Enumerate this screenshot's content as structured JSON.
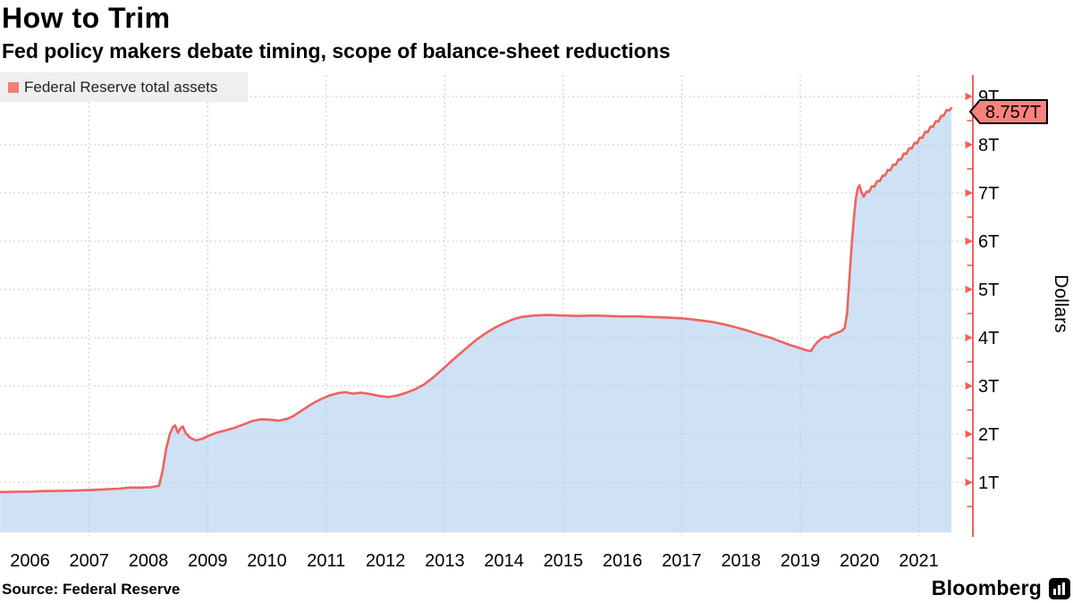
{
  "header": {
    "title": "How to Trim",
    "subtitle": "Fed policy makers debate timing, scope of balance-sheet reductions"
  },
  "legend": {
    "label": "Federal Reserve total assets",
    "swatch_color": "#f87c78"
  },
  "footer": {
    "source": "Source: Federal Reserve",
    "brand": "Bloomberg",
    "brand_icon": "bloomberg-terminal-icon"
  },
  "chart_data": {
    "type": "area",
    "title": "How to Trim",
    "y_axis_title": "Dollars",
    "last_value_label": "8.757T",
    "x_tick_labels": [
      "2006",
      "2007",
      "2008",
      "2009",
      "2010",
      "2011",
      "2012",
      "2013",
      "2014",
      "2015",
      "2016",
      "2017",
      "2018",
      "2019",
      "2020",
      "2021"
    ],
    "y_tick_labels": [
      {
        "label": "1T",
        "value": 1
      },
      {
        "label": "2T",
        "value": 2
      },
      {
        "label": "3T",
        "value": 3
      },
      {
        "label": "4T",
        "value": 4
      },
      {
        "label": "5T",
        "value": 5
      },
      {
        "label": "6T",
        "value": 6
      },
      {
        "label": "7T",
        "value": 7
      },
      {
        "label": "8T",
        "value": 8
      },
      {
        "label": "9T",
        "value": 9
      }
    ],
    "ylim": [
      0,
      9.4
    ],
    "xlim": [
      2006.0,
      2022.08
    ],
    "grid": {
      "vertical_years": [
        2008,
        2010,
        2012,
        2014,
        2016,
        2018,
        2020,
        2022
      ],
      "horizontal_values": [
        1,
        2,
        3,
        4,
        5,
        6,
        7,
        8,
        9
      ]
    },
    "colors": {
      "line": "#ef6260",
      "fill": "#cfe1f5",
      "axis": "#f2605a",
      "badge_fill": "#f9827d",
      "grid": "#c8c8c8",
      "legend_bg": "#efefef"
    },
    "series": [
      {
        "name": "Federal Reserve total assets",
        "units": "trillions of dollars",
        "points": [
          [
            2006.0,
            0.8
          ],
          [
            2006.25,
            0.805
          ],
          [
            2006.5,
            0.81
          ],
          [
            2006.75,
            0.82
          ],
          [
            2007.0,
            0.825
          ],
          [
            2007.25,
            0.83
          ],
          [
            2007.5,
            0.84
          ],
          [
            2007.75,
            0.855
          ],
          [
            2008.0,
            0.87
          ],
          [
            2008.2,
            0.895
          ],
          [
            2008.35,
            0.89
          ],
          [
            2008.55,
            0.9
          ],
          [
            2008.68,
            0.93
          ],
          [
            2008.74,
            1.25
          ],
          [
            2008.8,
            1.7
          ],
          [
            2008.86,
            2.0
          ],
          [
            2008.91,
            2.14
          ],
          [
            2008.95,
            2.18
          ],
          [
            2009.0,
            2.03
          ],
          [
            2009.04,
            2.12
          ],
          [
            2009.08,
            2.16
          ],
          [
            2009.13,
            2.02
          ],
          [
            2009.2,
            1.93
          ],
          [
            2009.3,
            1.87
          ],
          [
            2009.4,
            1.9
          ],
          [
            2009.5,
            1.96
          ],
          [
            2009.65,
            2.03
          ],
          [
            2009.8,
            2.08
          ],
          [
            2009.95,
            2.13
          ],
          [
            2010.1,
            2.2
          ],
          [
            2010.25,
            2.27
          ],
          [
            2010.4,
            2.31
          ],
          [
            2010.55,
            2.3
          ],
          [
            2010.7,
            2.28
          ],
          [
            2010.85,
            2.32
          ],
          [
            2010.95,
            2.38
          ],
          [
            2011.1,
            2.5
          ],
          [
            2011.25,
            2.62
          ],
          [
            2011.4,
            2.72
          ],
          [
            2011.55,
            2.8
          ],
          [
            2011.7,
            2.85
          ],
          [
            2011.82,
            2.87
          ],
          [
            2011.95,
            2.84
          ],
          [
            2012.1,
            2.86
          ],
          [
            2012.25,
            2.83
          ],
          [
            2012.4,
            2.79
          ],
          [
            2012.55,
            2.77
          ],
          [
            2012.7,
            2.8
          ],
          [
            2012.85,
            2.86
          ],
          [
            2013.0,
            2.93
          ],
          [
            2013.15,
            3.03
          ],
          [
            2013.3,
            3.17
          ],
          [
            2013.45,
            3.33
          ],
          [
            2013.6,
            3.5
          ],
          [
            2013.75,
            3.66
          ],
          [
            2013.9,
            3.82
          ],
          [
            2014.05,
            3.97
          ],
          [
            2014.2,
            4.1
          ],
          [
            2014.35,
            4.21
          ],
          [
            2014.5,
            4.3
          ],
          [
            2014.65,
            4.38
          ],
          [
            2014.8,
            4.43
          ],
          [
            2015.0,
            4.46
          ],
          [
            2015.25,
            4.47
          ],
          [
            2015.5,
            4.46
          ],
          [
            2015.75,
            4.45
          ],
          [
            2016.0,
            4.46
          ],
          [
            2016.25,
            4.45
          ],
          [
            2016.5,
            4.44
          ],
          [
            2016.75,
            4.44
          ],
          [
            2017.0,
            4.43
          ],
          [
            2017.2,
            4.42
          ],
          [
            2017.4,
            4.41
          ],
          [
            2017.6,
            4.39
          ],
          [
            2017.8,
            4.36
          ],
          [
            2018.0,
            4.33
          ],
          [
            2018.2,
            4.28
          ],
          [
            2018.4,
            4.22
          ],
          [
            2018.6,
            4.15
          ],
          [
            2018.8,
            4.07
          ],
          [
            2019.0,
            4.0
          ],
          [
            2019.15,
            3.93
          ],
          [
            2019.3,
            3.86
          ],
          [
            2019.45,
            3.8
          ],
          [
            2019.6,
            3.74
          ],
          [
            2019.68,
            3.72
          ],
          [
            2019.74,
            3.84
          ],
          [
            2019.8,
            3.92
          ],
          [
            2019.86,
            3.98
          ],
          [
            2019.92,
            4.02
          ],
          [
            2019.97,
            4.0
          ],
          [
            2020.02,
            4.05
          ],
          [
            2020.08,
            4.08
          ],
          [
            2020.14,
            4.11
          ],
          [
            2020.2,
            4.14
          ],
          [
            2020.25,
            4.2
          ],
          [
            2020.29,
            4.5
          ],
          [
            2020.32,
            5.05
          ],
          [
            2020.35,
            5.6
          ],
          [
            2020.38,
            6.1
          ],
          [
            2020.41,
            6.55
          ],
          [
            2020.44,
            6.9
          ],
          [
            2020.47,
            7.1
          ],
          [
            2020.5,
            7.16
          ],
          [
            2020.53,
            7.03
          ],
          [
            2020.57,
            6.92
          ],
          [
            2020.62,
            7.03
          ],
          [
            2020.66,
            7.02
          ],
          [
            2020.71,
            7.14
          ],
          [
            2020.75,
            7.13
          ],
          [
            2020.8,
            7.25
          ],
          [
            2020.84,
            7.24
          ],
          [
            2020.89,
            7.36
          ],
          [
            2020.93,
            7.36
          ],
          [
            2020.98,
            7.48
          ],
          [
            2021.02,
            7.47
          ],
          [
            2021.07,
            7.59
          ],
          [
            2021.11,
            7.58
          ],
          [
            2021.16,
            7.7
          ],
          [
            2021.2,
            7.69
          ],
          [
            2021.25,
            7.82
          ],
          [
            2021.29,
            7.81
          ],
          [
            2021.34,
            7.93
          ],
          [
            2021.38,
            7.92
          ],
          [
            2021.43,
            8.04
          ],
          [
            2021.47,
            8.03
          ],
          [
            2021.52,
            8.15
          ],
          [
            2021.56,
            8.14
          ],
          [
            2021.61,
            8.27
          ],
          [
            2021.65,
            8.26
          ],
          [
            2021.7,
            8.38
          ],
          [
            2021.74,
            8.37
          ],
          [
            2021.79,
            8.49
          ],
          [
            2021.83,
            8.48
          ],
          [
            2021.88,
            8.6
          ],
          [
            2021.92,
            8.6
          ],
          [
            2021.97,
            8.72
          ],
          [
            2022.01,
            8.71
          ],
          [
            2022.05,
            8.757
          ]
        ]
      }
    ],
    "legend_position": "top-left",
    "grid_style": "dashed"
  }
}
